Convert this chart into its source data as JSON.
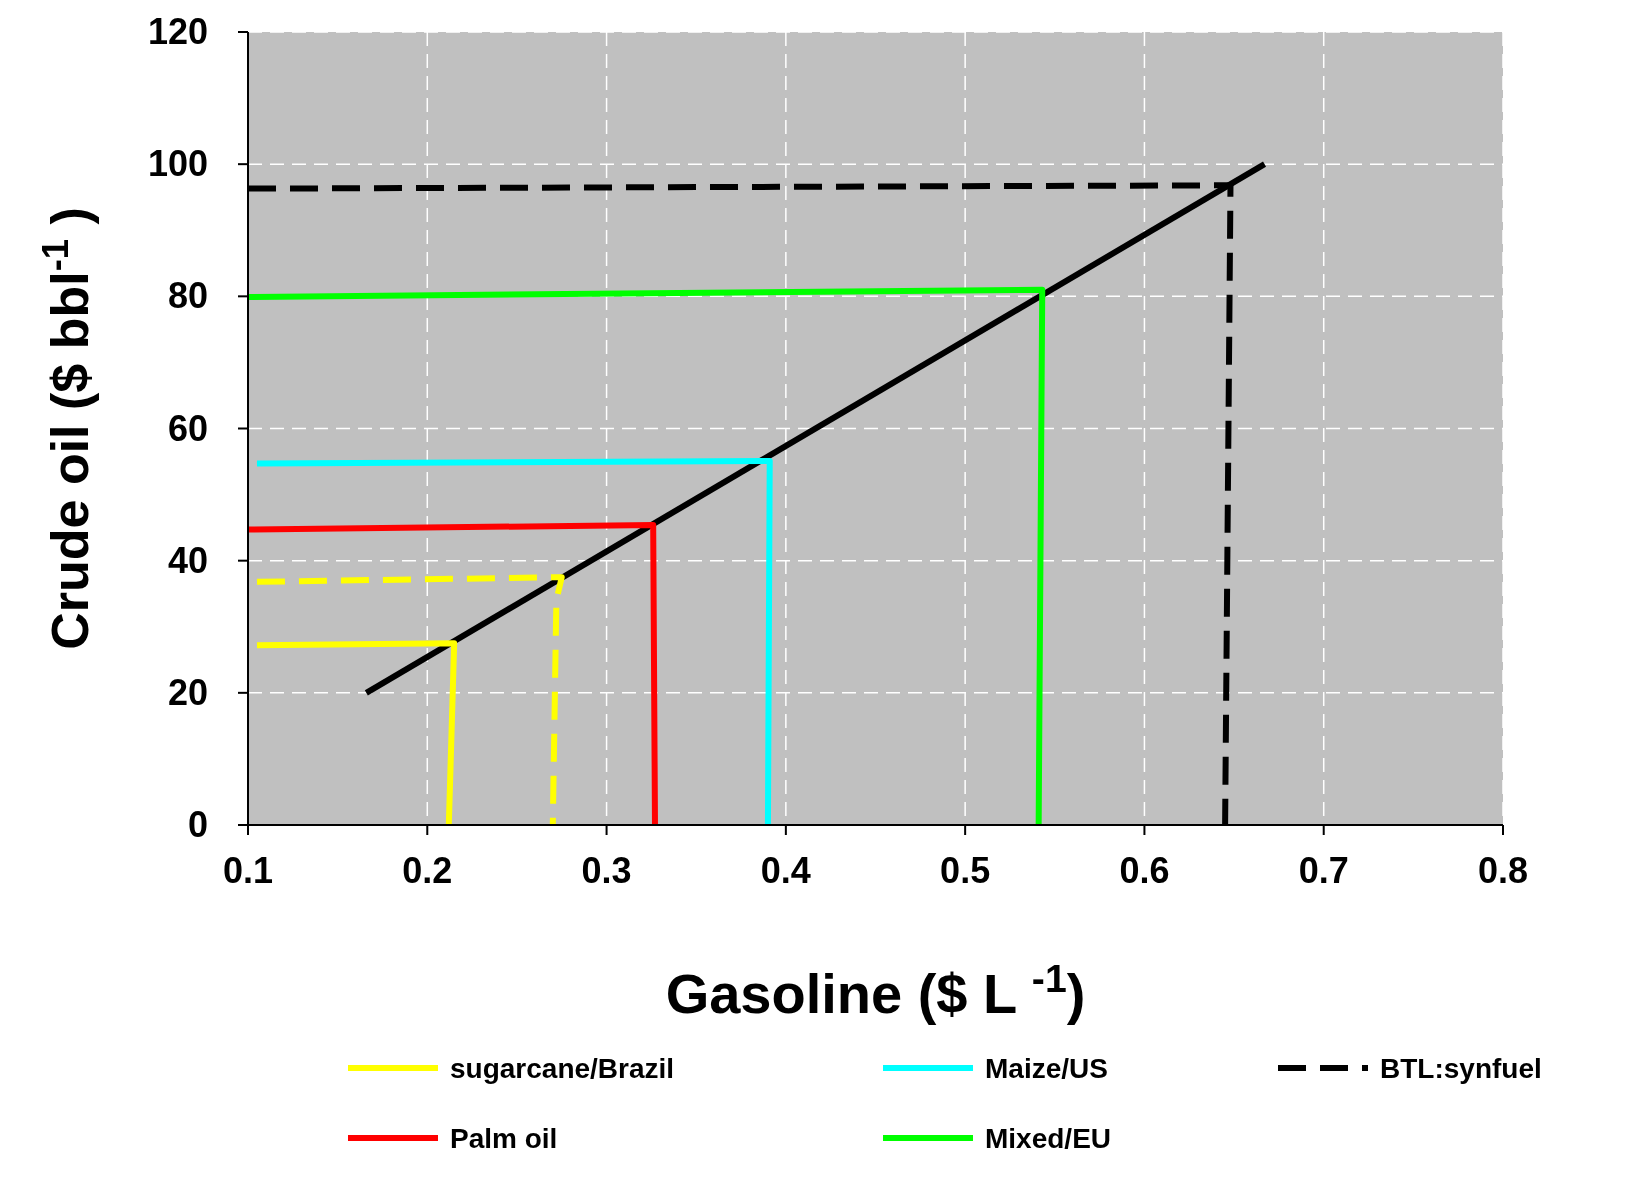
{
  "chart_data": {
    "type": "line",
    "xlabel": "Gasoline ($ L $^{-1}$)",
    "ylabel": "Crude oil ($ bbl$^{-1}$ )",
    "xlim": [
      0.1,
      0.8
    ],
    "ylim": [
      0,
      120
    ],
    "xticks": [
      0.1,
      0.2,
      0.3,
      0.4,
      0.5,
      0.6,
      0.7,
      0.8
    ],
    "yticks": [
      0,
      20,
      40,
      60,
      80,
      100,
      120
    ],
    "grid": true,
    "legend": "bottom",
    "series": [
      {
        "color": "#000000",
        "line_style": "solid",
        "x": [
          0.166,
          0.667
        ],
        "values": [
          20,
          100
        ]
      },
      {
        "name": "sugarcane/Brazil",
        "color": "#ffff00",
        "line_style": "solid",
        "x": [
          0.105,
          0.215,
          0.212
        ],
        "values": [
          27.2,
          27.5,
          0
        ]
      },
      {
        "color": "#ffff00",
        "line_style": "dashed",
        "x": [
          0.105,
          0.275,
          0.272,
          0.27
        ],
        "values": [
          36.8,
          37.5,
          34,
          0
        ]
      },
      {
        "name": "Palm oil",
        "color": "#ff0000",
        "line_style": "solid",
        "x": [
          0.1,
          0.326,
          0.327
        ],
        "values": [
          44.7,
          45.4,
          0
        ]
      },
      {
        "name": "Maize/US",
        "color": "#00ffff",
        "line_style": "solid",
        "x": [
          0.105,
          0.391,
          0.39
        ],
        "values": [
          54.7,
          55.1,
          0
        ]
      },
      {
        "name": "Mixed/EU",
        "color": "#00ff00",
        "line_style": "solid",
        "x": [
          0.1,
          0.543,
          0.541
        ],
        "values": [
          79.9,
          81,
          0
        ]
      },
      {
        "name": "BTL:synfuel",
        "color": "#000000",
        "line_style": "dashed",
        "x": [
          0.1,
          0.648,
          0.645
        ],
        "values": [
          96.3,
          96.8,
          0
        ]
      }
    ]
  }
}
